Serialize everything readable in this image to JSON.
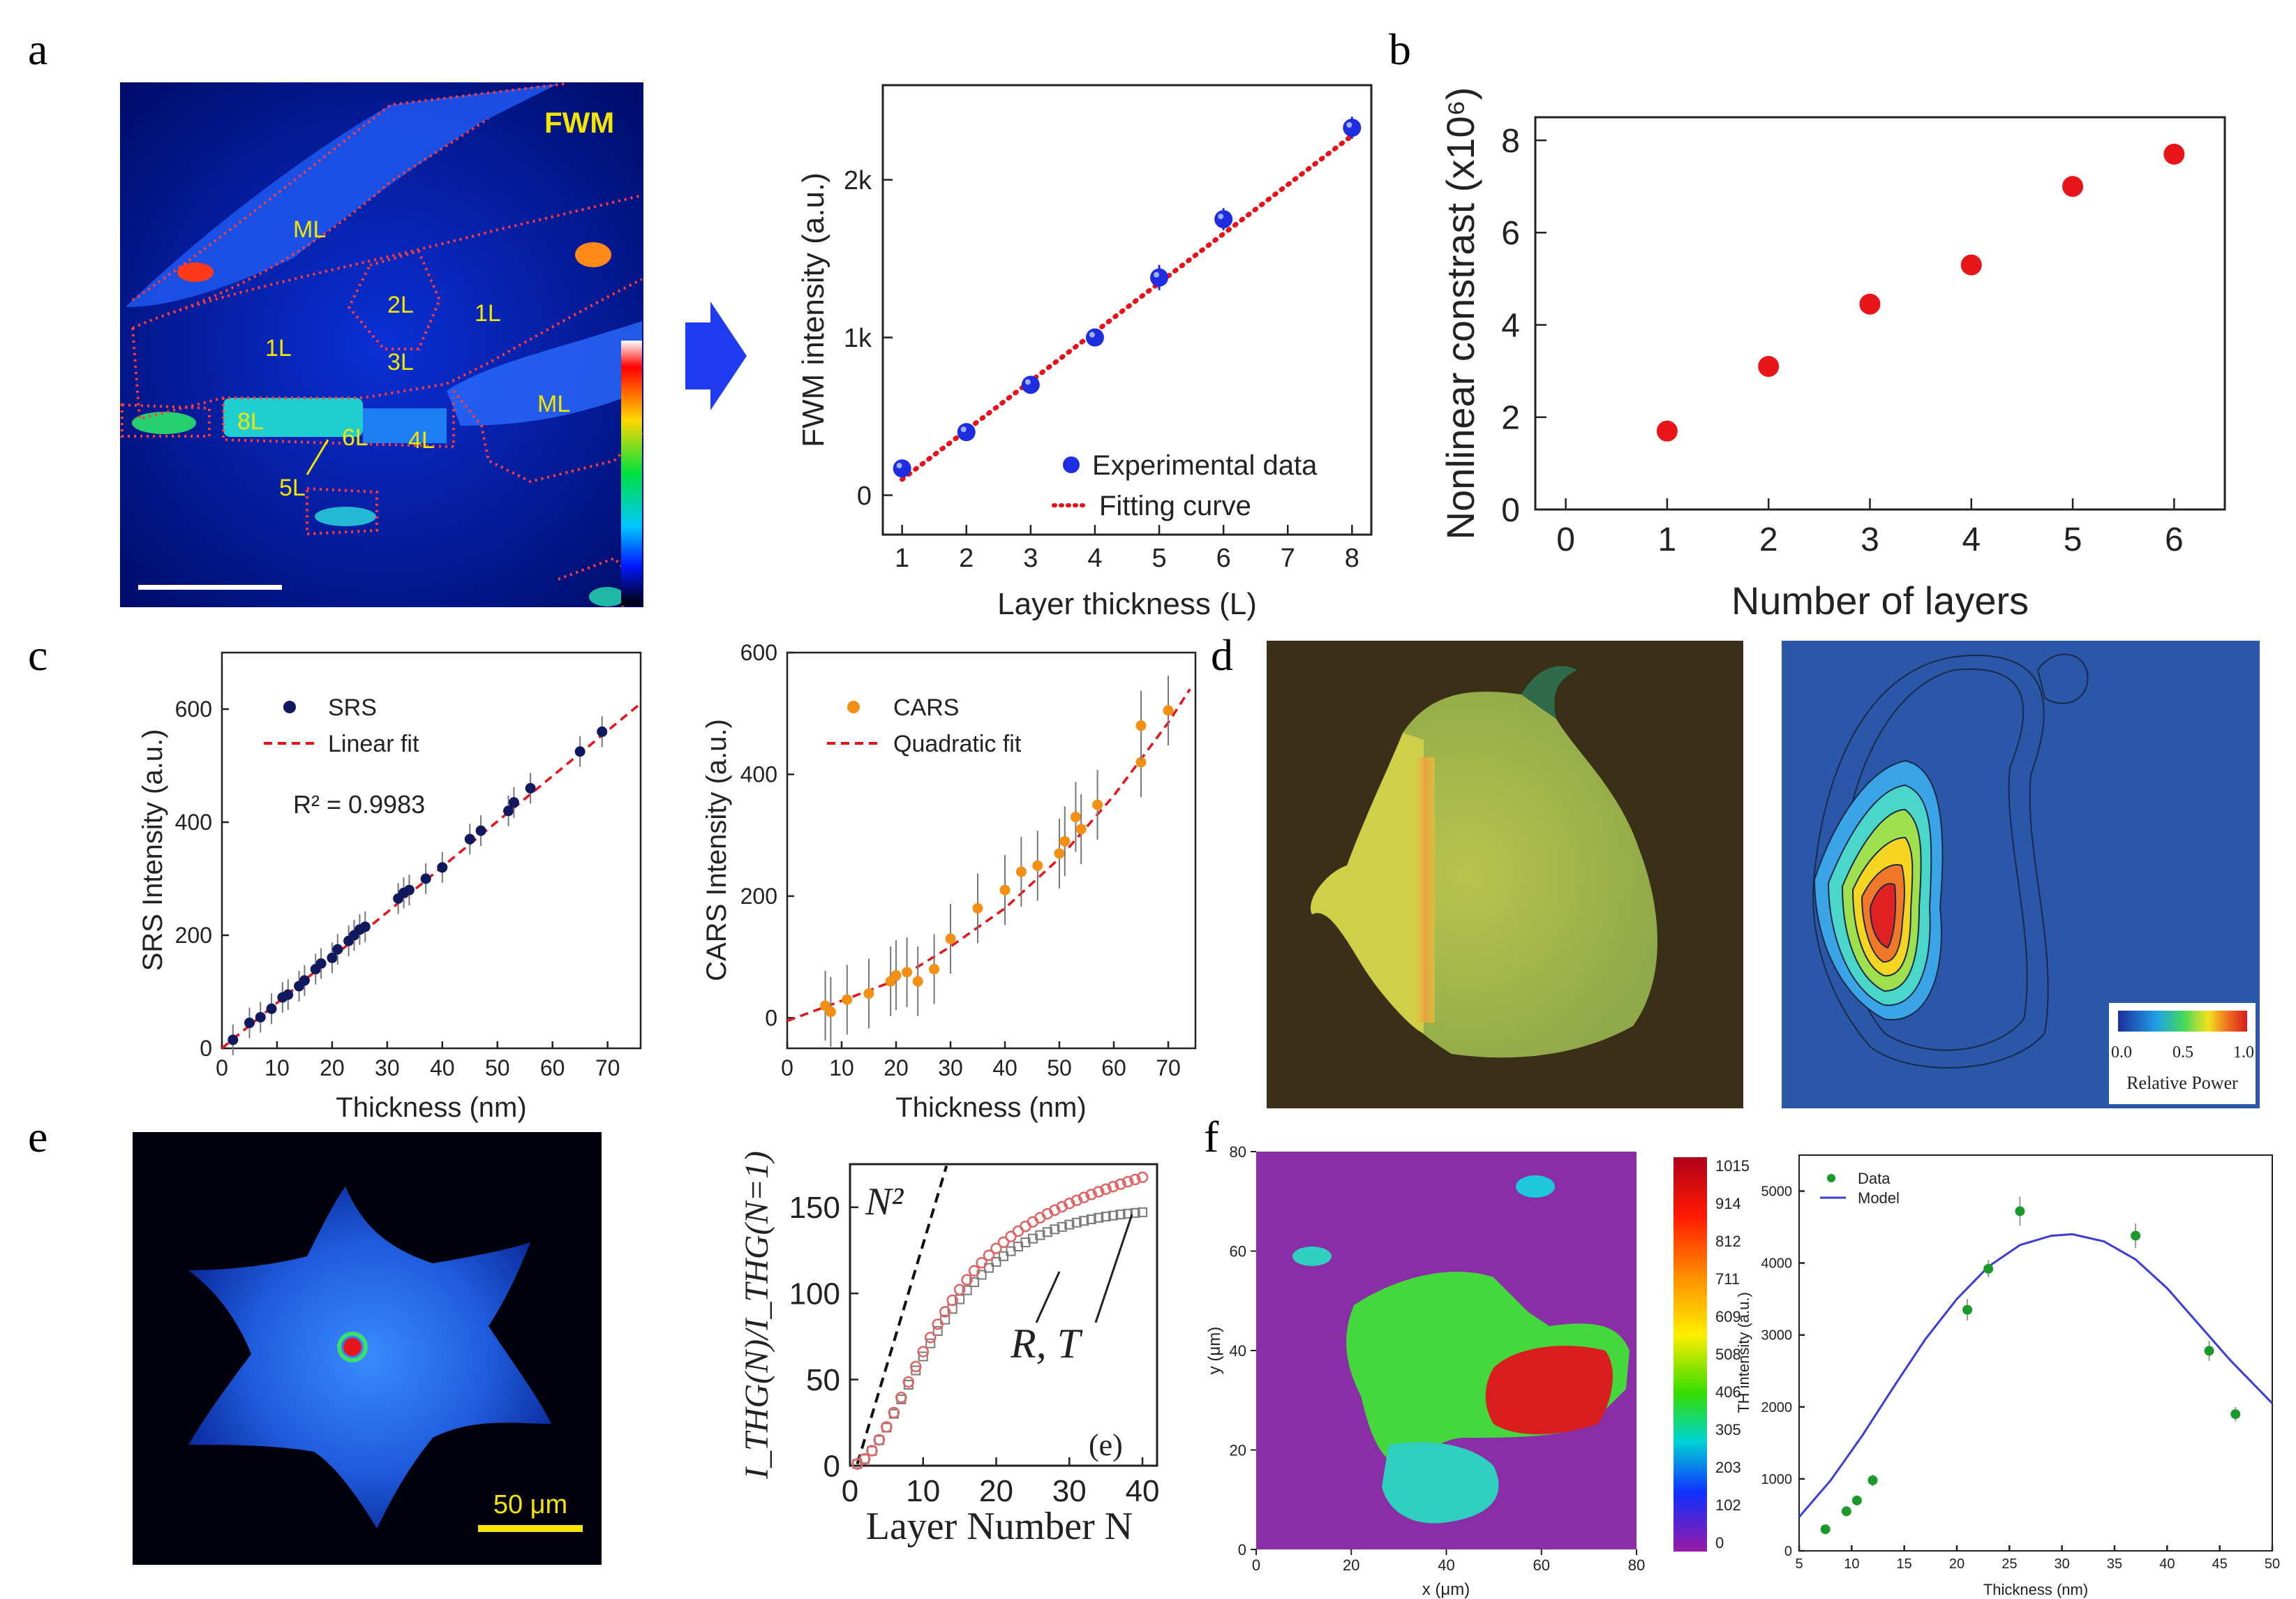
{
  "figure": {
    "panel_letters": [
      "a",
      "b",
      "c",
      "d",
      "e",
      "f"
    ]
  },
  "images": {
    "fwm_map": {
      "title": "FWM",
      "region_labels": [
        "ML",
        "1L",
        "2L",
        "1L",
        "3L",
        "1L",
        "ML",
        "8L",
        "6L",
        "4L",
        "5L"
      ],
      "colors": {
        "label": "#f2e600",
        "outline": "#ff3b3b",
        "background": "#00138a"
      }
    },
    "thg_star": {
      "scale_label": "50 μm",
      "scale_color": "#f5e400"
    },
    "optical_flake": {},
    "power_map": {
      "colorbar_ticks": [
        "0.0",
        "0.5",
        "1.0"
      ],
      "colorbar_label": "Relative Power"
    },
    "th_map": {
      "colorbar_ticks": [
        "1015",
        "914",
        "812",
        "711",
        "609",
        "508",
        "406",
        "305",
        "203",
        "102",
        "0"
      ],
      "xlabel": "x (μm)",
      "ylabel": "y (μm)",
      "x_ticks": [
        "0",
        "20",
        "40",
        "60",
        "80"
      ],
      "y_ticks": [
        "0",
        "20",
        "40",
        "60",
        "80"
      ]
    }
  },
  "chart_data": [
    {
      "id": "fwm",
      "type": "scatter",
      "title": "",
      "xlabel": "Layer thickness (L)",
      "ylabel": "FWM intensity (a.u.)",
      "xlim": [
        0.7,
        8.3
      ],
      "ylim": [
        -250,
        2600
      ],
      "x_ticks": [
        1,
        2,
        3,
        4,
        5,
        6,
        7,
        8
      ],
      "y_ticks": [
        0,
        1000,
        2000
      ],
      "y_tick_labels": [
        "0",
        "1k",
        "2k"
      ],
      "series": [
        {
          "name": "Experimental data",
          "type": "scatter",
          "color": "#1f2de0",
          "x": [
            1,
            2,
            3,
            4,
            5,
            6,
            8
          ],
          "y": [
            170,
            400,
            700,
            1000,
            1380,
            1750,
            2330
          ],
          "err": [
            40,
            40,
            55,
            35,
            80,
            70,
            70
          ]
        },
        {
          "name": "Fitting curve",
          "type": "line",
          "style": "dotted",
          "color": "#e8121b",
          "x": [
            1,
            8
          ],
          "y": [
            100,
            2280
          ]
        }
      ],
      "legend": [
        "Experimental data",
        "Fitting curve"
      ],
      "legend_position": "bottom-right"
    },
    {
      "id": "nonlinear",
      "type": "scatter",
      "title": "",
      "xlabel": "Number of layers",
      "ylabel": "Nonlinear constrast (x10⁶)",
      "xlim": [
        -0.3,
        6.5
      ],
      "ylim": [
        0,
        8.5
      ],
      "x_ticks": [
        0,
        1,
        2,
        3,
        4,
        5,
        6
      ],
      "y_ticks": [
        0,
        2,
        4,
        6,
        8
      ],
      "series": [
        {
          "name": "data",
          "color": "#e8151b",
          "x": [
            1,
            2,
            3,
            4,
            5,
            6
          ],
          "y": [
            1.7,
            3.1,
            4.45,
            5.3,
            7.0,
            7.7
          ]
        }
      ]
    },
    {
      "id": "srs",
      "type": "scatter",
      "title": "",
      "xlabel": "Thickness (nm)",
      "ylabel": "SRS Intensity (a.u.)",
      "xlim": [
        0,
        76
      ],
      "ylim": [
        0,
        700
      ],
      "x_ticks": [
        0,
        10,
        20,
        30,
        40,
        50,
        60,
        70
      ],
      "y_ticks": [
        0,
        200,
        400,
        600
      ],
      "annotation": "R² = 0.9983",
      "series": [
        {
          "name": "SRS",
          "color": "#10185e",
          "x": [
            2,
            5,
            7,
            9,
            11,
            12,
            14,
            15,
            17,
            18,
            20,
            21,
            23,
            24,
            25,
            26,
            32,
            33,
            34,
            37,
            40,
            45,
            47,
            52,
            53,
            56,
            65,
            69
          ],
          "y": [
            15,
            45,
            55,
            70,
            90,
            95,
            110,
            120,
            140,
            150,
            160,
            175,
            190,
            200,
            210,
            215,
            265,
            275,
            280,
            300,
            320,
            370,
            385,
            420,
            435,
            460,
            525,
            560
          ]
        },
        {
          "name": "Linear fit",
          "type": "line",
          "style": "dashed",
          "color": "#e8121b",
          "x": [
            0,
            76
          ],
          "y": [
            0,
            610
          ]
        }
      ],
      "legend": [
        "SRS",
        "Linear fit"
      ],
      "legend_position": "top-left"
    },
    {
      "id": "cars",
      "type": "scatter",
      "title": "",
      "xlabel": "Thickness (nm)",
      "ylabel": "CARS Intensity (a.u.)",
      "xlim": [
        0,
        75
      ],
      "ylim": [
        -50,
        600
      ],
      "x_ticks": [
        0,
        10,
        20,
        30,
        40,
        50,
        60,
        70
      ],
      "y_ticks": [
        0,
        200,
        400,
        600
      ],
      "series": [
        {
          "name": "CARS",
          "color": "#f39013",
          "x": [
            7,
            8,
            11,
            15,
            19,
            20,
            22,
            24,
            27,
            30,
            35,
            40,
            43,
            46,
            50,
            51,
            53,
            54,
            57,
            65,
            65,
            70
          ],
          "y": [
            20,
            10,
            30,
            40,
            60,
            70,
            75,
            60,
            80,
            130,
            180,
            210,
            240,
            250,
            270,
            290,
            330,
            310,
            350,
            420,
            480,
            505
          ]
        },
        {
          "name": "Quadratic fit",
          "type": "line",
          "style": "dashed",
          "color": "#e8121b",
          "x": [
            0,
            10,
            20,
            30,
            40,
            50,
            60,
            70,
            74
          ],
          "y": [
            -5,
            28,
            62,
            117,
            180,
            262,
            365,
            485,
            540
          ]
        }
      ],
      "legend": [
        "CARS",
        "Quadratic fit"
      ],
      "legend_position": "top-left"
    },
    {
      "id": "thg_layers",
      "type": "line",
      "title": "",
      "xlabel": "Layer Number N",
      "ylabel": "I_THG(N)/I_THG(N=1)",
      "xlim": [
        0,
        42
      ],
      "ylim": [
        0,
        175
      ],
      "x_ticks": [
        0,
        10,
        20,
        30,
        40
      ],
      "y_ticks": [
        0,
        50,
        100,
        150
      ],
      "annotations": [
        "N²",
        "R, T",
        "(e)"
      ],
      "series": [
        {
          "name": "N^2",
          "style": "dashed",
          "color": "#111111",
          "x": [
            1,
            13.2
          ],
          "y": [
            1,
            174
          ]
        },
        {
          "name": "R",
          "marker": "circle",
          "color": "#e06262",
          "x": [
            1,
            2,
            3,
            4,
            5,
            6,
            7,
            8,
            9,
            10,
            11,
            12,
            13,
            14,
            15,
            16,
            17,
            18,
            19,
            20,
            21,
            22,
            23,
            24,
            25,
            26,
            27,
            28,
            29,
            30,
            31,
            32,
            33,
            34,
            35,
            36,
            37,
            38,
            39,
            40
          ],
          "y": [
            1,
            3.9,
            8.7,
            15,
            22.5,
            30.8,
            39.6,
            48.6,
            57.5,
            66.2,
            74.4,
            82.1,
            89.3,
            96.0,
            102.2,
            107.9,
            113.1,
            117.8,
            122.1,
            126.1,
            129.7,
            133.0,
            136.1,
            138.9,
            141.5,
            143.9,
            146.2,
            148.3,
            150.3,
            152.2,
            154.0,
            155.7,
            157.4,
            159.0,
            160.5,
            162.0,
            163.4,
            164.8,
            166.1,
            167.4
          ]
        },
        {
          "name": "T",
          "marker": "square",
          "color": "#7a7a7a",
          "x": [
            1,
            2,
            3,
            4,
            5,
            6,
            7,
            8,
            9,
            10,
            11,
            12,
            13,
            14,
            15,
            16,
            17,
            18,
            19,
            20,
            21,
            22,
            23,
            24,
            25,
            26,
            27,
            28,
            29,
            30,
            31,
            32,
            33,
            34,
            35,
            36,
            37,
            38,
            39,
            40
          ],
          "y": [
            1,
            3.9,
            8.6,
            14.8,
            22.1,
            30.1,
            38.5,
            47.0,
            55.3,
            63.4,
            71.0,
            78.2,
            84.8,
            91.0,
            96.6,
            101.8,
            106.5,
            110.8,
            114.8,
            118.3,
            121.6,
            124.5,
            127.2,
            129.6,
            131.8,
            133.8,
            135.6,
            137.2,
            138.6,
            139.9,
            141.1,
            142.1,
            143.0,
            143.9,
            144.6,
            145.2,
            145.8,
            146.3,
            146.7,
            147.1
          ]
        }
      ]
    },
    {
      "id": "th_thickness",
      "type": "scatter",
      "title": "",
      "xlabel": "Thickness (nm)",
      "ylabel": "TH intensity (a.u.)",
      "xlim": [
        5,
        50
      ],
      "ylim": [
        0,
        5500
      ],
      "x_ticks": [
        5,
        10,
        15,
        20,
        25,
        30,
        35,
        40,
        45,
        50
      ],
      "y_ticks": [
        0,
        1000,
        2000,
        3000,
        4000,
        5000
      ],
      "series": [
        {
          "name": "Data",
          "color": "#1a9a2a",
          "x": [
            7.5,
            9.5,
            10.5,
            12,
            21,
            23,
            26,
            37,
            44,
            46.5
          ],
          "y": [
            300,
            550,
            700,
            980,
            3350,
            3920,
            4720,
            4380,
            2780,
            1900
          ],
          "err": [
            60,
            70,
            70,
            80,
            150,
            120,
            200,
            170,
            140,
            100
          ]
        },
        {
          "name": "Model",
          "type": "line",
          "color": "#3c3cd8",
          "x": [
            5,
            8,
            11,
            14,
            17,
            20,
            23,
            26,
            29,
            31,
            34,
            37,
            40,
            43,
            46,
            50
          ],
          "y": [
            470,
            980,
            1600,
            2280,
            2940,
            3500,
            3950,
            4250,
            4380,
            4400,
            4300,
            4050,
            3650,
            3150,
            2650,
            2050
          ]
        }
      ],
      "legend": [
        "Data",
        "Model"
      ],
      "legend_position": "top-left"
    }
  ]
}
